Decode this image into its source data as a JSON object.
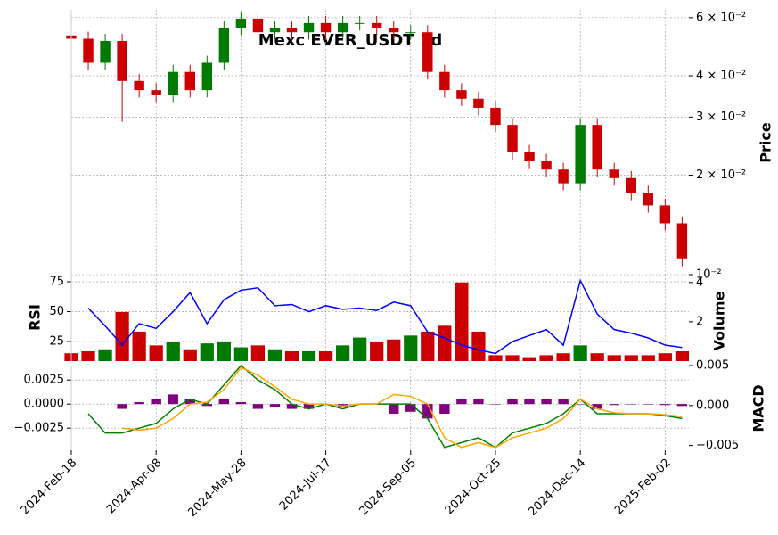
{
  "chart_data": {
    "type": "candlestick",
    "title": "Mexc EVER_USDT 1d",
    "x": [
      "2024-Feb-18",
      "2024-Feb-28",
      "2024-Mar-09",
      "2024-Mar-19",
      "2024-Mar-29",
      "2024-Apr-08",
      "2024-Apr-18",
      "2024-Apr-28",
      "2024-May-08",
      "2024-May-18",
      "2024-May-28",
      "2024-Jun-07",
      "2024-Jun-17",
      "2024-Jun-27",
      "2024-Jul-07",
      "2024-Jul-17",
      "2024-Jul-27",
      "2024-Aug-06",
      "2024-Aug-16",
      "2024-Aug-26",
      "2024-Sep-05",
      "2024-Sep-15",
      "2024-Sep-25",
      "2024-Oct-05",
      "2024-Oct-15",
      "2024-Oct-25",
      "2024-Nov-04",
      "2024-Nov-14",
      "2024-Nov-24",
      "2024-Dec-04",
      "2024-Dec-14",
      "2024-Dec-24",
      "2025-Jan-03",
      "2025-Jan-13",
      "2025-Jan-23",
      "2025-Feb-02",
      "2025-Feb-12"
    ],
    "xlim": [
      "2024-Feb-18",
      "2025-Feb-16"
    ],
    "xticks": [
      "2024-Feb-18",
      "2024-Apr-08",
      "2024-May-28",
      "2024-Jul-17",
      "2024-Sep-05",
      "2024-Oct-25",
      "2024-Dec-14",
      "2025-Feb-02"
    ],
    "open": [
      0.053,
      0.0518,
      0.0438,
      0.051,
      0.0386,
      0.0362,
      0.0351,
      0.0411,
      0.0362,
      0.0438,
      0.056,
      0.0596,
      0.0542,
      0.056,
      0.0542,
      0.0578,
      0.0542,
      0.0578,
      0.0578,
      0.056,
      0.0542,
      0.0542,
      0.0411,
      0.0362,
      0.0341,
      0.032,
      0.0284,
      0.0235,
      0.0221,
      0.0208,
      0.0189,
      0.0284,
      0.0208,
      0.0196,
      0.0177,
      0.0162,
      0.0143
    ],
    "high": [
      0.0557,
      0.0544,
      0.0536,
      0.0536,
      0.0405,
      0.038,
      0.0432,
      0.0432,
      0.046,
      0.0588,
      0.0626,
      0.0626,
      0.0588,
      0.0588,
      0.0607,
      0.0607,
      0.0607,
      0.0607,
      0.0607,
      0.0588,
      0.0569,
      0.0569,
      0.0432,
      0.038,
      0.0358,
      0.0336,
      0.0298,
      0.0247,
      0.0232,
      0.0218,
      0.0298,
      0.0298,
      0.0218,
      0.0206,
      0.0186,
      0.017,
      0.015
    ],
    "low": [
      0.0492,
      0.0416,
      0.0416,
      0.029,
      0.0344,
      0.0333,
      0.0333,
      0.0344,
      0.0344,
      0.0416,
      0.0532,
      0.0515,
      0.0515,
      0.0515,
      0.0515,
      0.0515,
      0.0515,
      0.0549,
      0.0532,
      0.0515,
      0.0515,
      0.039,
      0.0344,
      0.0324,
      0.0304,
      0.027,
      0.0223,
      0.021,
      0.0198,
      0.018,
      0.018,
      0.0198,
      0.0186,
      0.0168,
      0.0154,
      0.0136,
      0.0106
    ],
    "close": [
      0.0518,
      0.0438,
      0.051,
      0.0386,
      0.0362,
      0.0351,
      0.0411,
      0.0362,
      0.0438,
      0.056,
      0.0596,
      0.0542,
      0.056,
      0.0542,
      0.0578,
      0.0542,
      0.0578,
      0.0578,
      0.056,
      0.0542,
      0.0542,
      0.0411,
      0.0362,
      0.0341,
      0.032,
      0.0284,
      0.0235,
      0.0221,
      0.0208,
      0.0189,
      0.0284,
      0.0208,
      0.0196,
      0.0177,
      0.0162,
      0.0143,
      0.0112
    ],
    "up_color": "#007a00",
    "down_color": "#cc0000",
    "ylabel": "Price",
    "log_scale": true,
    "grid": true,
    "ylim": [
      0.01,
      0.0634
    ],
    "yticks": [
      {
        "value": 0.01,
        "label": "10⁻²"
      },
      {
        "value": 0.02,
        "label": "2 × 10⁻²"
      },
      {
        "value": 0.03,
        "label": "3 × 10⁻²"
      },
      {
        "value": 0.04,
        "label": "4 × 10⁻²"
      },
      {
        "value": 0.06,
        "label": "6 × 10⁻²"
      }
    ],
    "rsi": {
      "label": "RSI",
      "color": "#0000ff",
      "ylim": [
        8.6,
        81
      ],
      "yticks": [
        25,
        50,
        75
      ],
      "values": [
        null,
        53,
        38,
        22,
        40,
        36,
        50,
        66,
        40,
        60,
        68,
        70,
        55,
        56,
        50,
        55,
        52,
        53,
        51,
        58,
        55,
        33,
        28,
        22,
        18,
        15,
        25,
        30,
        35,
        22,
        76,
        48,
        35,
        32,
        28,
        22,
        20
      ]
    },
    "volume": {
      "label": "Volume",
      "ylim": [
        0,
        4.4
      ],
      "yticks": [
        2,
        4
      ],
      "values": [
        0.4,
        0.5,
        0.6,
        2.5,
        1.5,
        0.8,
        1.0,
        0.6,
        0.9,
        1.0,
        0.7,
        0.8,
        0.6,
        0.5,
        0.5,
        0.5,
        0.8,
        1.2,
        1.0,
        1.1,
        1.3,
        1.5,
        1.8,
        4.0,
        1.5,
        0.3,
        0.3,
        0.2,
        0.3,
        0.4,
        0.8,
        0.4,
        0.3,
        0.3,
        0.3,
        0.4,
        0.5
      ]
    },
    "macd": {
      "label": "MACD",
      "ylim": [
        -0.0048,
        0.004
      ],
      "yticks": [
        {
          "value": -0.0025,
          "label": "−0.0025"
        },
        {
          "value": 0,
          "label": "0.0000"
        },
        {
          "value": 0.0025,
          "label": "0.0025"
        }
      ],
      "y2lim": [
        -0.0056,
        0.005
      ],
      "y2ticks": [
        {
          "value": -0.005,
          "label": "−0.005"
        },
        {
          "value": 0,
          "label": "0.000"
        },
        {
          "value": 0.005,
          "label": "0.005"
        }
      ],
      "macd_color": "#008000",
      "signal_color": "#ffa500",
      "hist_color": "#800080",
      "macd": [
        null,
        -0.001,
        -0.003,
        -0.003,
        -0.0025,
        -0.002,
        -0.0005,
        0.0005,
        0.0,
        0.002,
        0.004,
        0.0025,
        0.0015,
        0.0,
        -0.0005,
        0.0,
        -0.0005,
        0.0,
        0.0,
        0.0,
        0.0,
        -0.0015,
        -0.0045,
        -0.004,
        -0.0035,
        -0.0045,
        -0.003,
        -0.0025,
        -0.002,
        -0.001,
        0.0005,
        -0.001,
        -0.001,
        -0.001,
        -0.001,
        -0.0012,
        -0.0015
      ],
      "signal": [
        null,
        null,
        null,
        -0.0025,
        -0.0027,
        -0.0025,
        -0.0015,
        0.0,
        0.0002,
        0.0015,
        0.0038,
        0.003,
        0.0018,
        0.0005,
        0.0,
        0.0,
        -0.0002,
        0.0,
        0.0,
        0.001,
        0.0008,
        0.0,
        -0.0035,
        -0.0045,
        -0.004,
        -0.0045,
        -0.0035,
        -0.003,
        -0.0025,
        -0.0015,
        0.0005,
        -0.0005,
        -0.0009,
        -0.001,
        -0.001,
        -0.0011,
        -0.0013
      ],
      "histogram": [
        null,
        null,
        null,
        -0.0005,
        0.0002,
        0.0005,
        0.001,
        0.0005,
        -0.0002,
        0.0005,
        0.0002,
        -0.0005,
        -0.0003,
        -0.0005,
        -0.0005,
        0.0,
        -0.0003,
        0.0,
        0.0,
        -0.001,
        -0.0008,
        -0.0015,
        -0.001,
        0.0005,
        0.0005,
        0.0,
        0.0005,
        0.0005,
        0.0005,
        0.0005,
        0.0,
        -0.0005,
        -0.0001,
        0.0,
        0.0,
        -0.0001,
        -0.0002
      ]
    }
  }
}
